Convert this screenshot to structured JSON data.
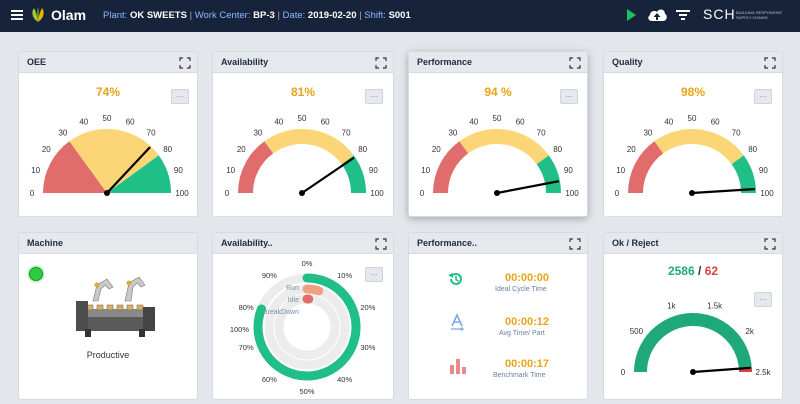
{
  "header": {
    "app_name": "Olam",
    "plant_label": "Plant:",
    "plant_value": "OK SWEETS",
    "work_center_label": "Work Center:",
    "work_center_value": "BP-3",
    "date_label": "Date:",
    "date_value": "2019-02-20",
    "shift_label": "Shift:",
    "shift_value": "S001",
    "separator": "|",
    "sch_logo_text": "SCH",
    "sch_tagline": "BUILDING RESPONSIVE SUPPLY CHAINS",
    "icons": [
      "menu-icon",
      "olam-leaf-icon",
      "play-icon",
      "cloud-upload-icon",
      "filter-icon"
    ]
  },
  "colors": {
    "red": "#e06c6c",
    "yellow": "#fcd577",
    "green": "#1fbf87",
    "orange_value": "#e8a316",
    "ok_green": "#1fa97a",
    "reject_red": "#d94040"
  },
  "gauge_ticks": [
    "0",
    "10",
    "20",
    "30",
    "40",
    "50",
    "60",
    "70",
    "80",
    "90",
    "100"
  ],
  "cards": {
    "oee": {
      "title": "OEE",
      "value": "74%",
      "needle": 74,
      "dots": "..."
    },
    "availability": {
      "title": "Availability",
      "value": "81%",
      "needle": 81,
      "dots": "..."
    },
    "performance": {
      "title": "Performance",
      "value": "94 %",
      "needle": 94,
      "dots": "..."
    },
    "quality": {
      "title": "Quality",
      "value": "98%",
      "needle": 98,
      "dots": "..."
    },
    "machine": {
      "title": "Machine",
      "status": "Productive",
      "status_color": "#2ecc40"
    },
    "availability_detail": {
      "title": "Availability..",
      "dots": "...",
      "legend": [
        "Run",
        "Idle",
        "BreakDown"
      ],
      "ticks": [
        "0%",
        "10%",
        "20%",
        "30%",
        "40%",
        "50%",
        "60%",
        "70%",
        "80%",
        "90%",
        "100%"
      ],
      "run_fraction": 0.81,
      "idle_fraction": 0.05,
      "breakdown_fraction": 0.01
    },
    "performance_detail": {
      "title": "Performance..",
      "items": [
        {
          "value": "00:00:00",
          "label": "Ideal Cycle Time",
          "icon": "history-icon"
        },
        {
          "value": "00:00:12",
          "label": "Avg Time/ Part",
          "icon": "text-size-icon"
        },
        {
          "value": "00:00:17",
          "label": "Benchmark Time",
          "icon": "bar-chart-icon"
        }
      ]
    },
    "ok_reject": {
      "title": "Ok / Reject",
      "ok": "2586",
      "slash": "/",
      "reject": "62",
      "dots": "...",
      "ticks": [
        "0",
        "500",
        "1k",
        "1.5k",
        "2k",
        "2.5k"
      ],
      "ok_fraction": 0.977
    }
  }
}
